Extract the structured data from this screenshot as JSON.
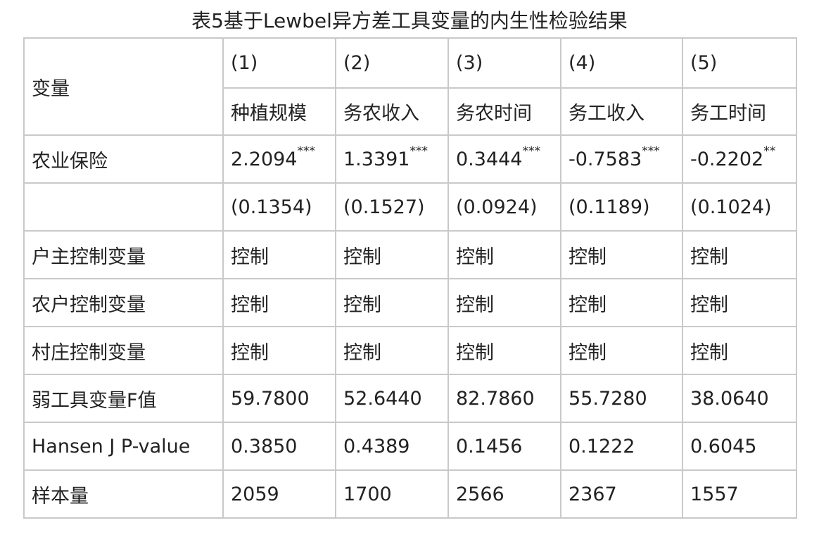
{
  "title": "表5基于Lewbel异方差工具变量的内生性检验结果",
  "header": {
    "variable_label": "变量",
    "columns": [
      {
        "num": "(1)",
        "name": "种植规模"
      },
      {
        "num": "(2)",
        "name": "务农收入"
      },
      {
        "num": "(3)",
        "name": "务农时间"
      },
      {
        "num": "(4)",
        "name": "务工收入"
      },
      {
        "num": "(5)",
        "name": "务工时间"
      }
    ]
  },
  "rows": [
    {
      "label": "农业保险",
      "cells": [
        {
          "v": "2.2094",
          "s": "***"
        },
        {
          "v": "1.3391",
          "s": "***"
        },
        {
          "v": "0.3444",
          "s": "***"
        },
        {
          "v": "-0.7583",
          "s": "***"
        },
        {
          "v": "-0.2202",
          "s": "**"
        }
      ]
    },
    {
      "label": "",
      "cells": [
        {
          "v": "(0.1354)",
          "s": ""
        },
        {
          "v": "(0.1527)",
          "s": ""
        },
        {
          "v": "(0.0924)",
          "s": ""
        },
        {
          "v": "(0.1189)",
          "s": ""
        },
        {
          "v": "(0.1024)",
          "s": ""
        }
      ]
    },
    {
      "label": "户主控制变量",
      "cells": [
        {
          "v": "控制",
          "s": ""
        },
        {
          "v": "控制",
          "s": ""
        },
        {
          "v": "控制",
          "s": ""
        },
        {
          "v": "控制",
          "s": ""
        },
        {
          "v": "控制",
          "s": ""
        }
      ]
    },
    {
      "label": "农户控制变量",
      "cells": [
        {
          "v": "控制",
          "s": ""
        },
        {
          "v": "控制",
          "s": ""
        },
        {
          "v": "控制",
          "s": ""
        },
        {
          "v": "控制",
          "s": ""
        },
        {
          "v": "控制",
          "s": ""
        }
      ]
    },
    {
      "label": "村庄控制变量",
      "cells": [
        {
          "v": "控制",
          "s": ""
        },
        {
          "v": "控制",
          "s": ""
        },
        {
          "v": "控制",
          "s": ""
        },
        {
          "v": "控制",
          "s": ""
        },
        {
          "v": "控制",
          "s": ""
        }
      ]
    },
    {
      "label": "弱工具变量F值",
      "cells": [
        {
          "v": "59.7800",
          "s": ""
        },
        {
          "v": "52.6440",
          "s": ""
        },
        {
          "v": "82.7860",
          "s": ""
        },
        {
          "v": "55.7280",
          "s": ""
        },
        {
          "v": "38.0640",
          "s": ""
        }
      ]
    },
    {
      "label": "Hansen J P-value",
      "cells": [
        {
          "v": "0.3850",
          "s": ""
        },
        {
          "v": "0.4389",
          "s": ""
        },
        {
          "v": "0.1456",
          "s": ""
        },
        {
          "v": "0.1222",
          "s": ""
        },
        {
          "v": "0.6045",
          "s": ""
        }
      ]
    },
    {
      "label": "样本量",
      "cells": [
        {
          "v": "2059",
          "s": ""
        },
        {
          "v": "1700",
          "s": ""
        },
        {
          "v": "2566",
          "s": ""
        },
        {
          "v": "2367",
          "s": ""
        },
        {
          "v": "1557",
          "s": ""
        }
      ]
    }
  ]
}
